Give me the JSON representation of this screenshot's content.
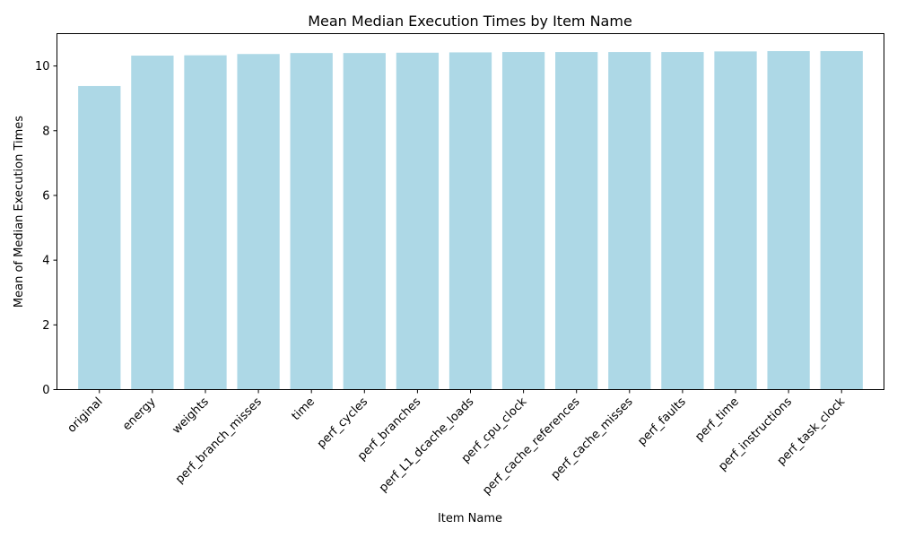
{
  "chart_data": {
    "type": "bar",
    "title": "Mean Median Execution Times by Item Name",
    "xlabel": "Item Name",
    "ylabel": "Mean of Median Execution Times",
    "categories": [
      "original",
      "energy",
      "weights",
      "perf_branch_misses",
      "time",
      "perf_cycles",
      "perf_branches",
      "perf_L1_dcache_loads",
      "perf_cpu_clock",
      "perf_cache_references",
      "perf_cache_misses",
      "perf_faults",
      "perf_time",
      "perf_instructions",
      "perf_task_clock"
    ],
    "values": [
      9.38,
      10.32,
      10.33,
      10.37,
      10.4,
      10.4,
      10.41,
      10.42,
      10.43,
      10.43,
      10.43,
      10.43,
      10.45,
      10.46,
      10.46
    ],
    "ylim": [
      0,
      11
    ],
    "yticks": [
      0,
      2,
      4,
      6,
      8,
      10
    ],
    "bar_color": "#add8e6",
    "grid": false,
    "legend": "none"
  }
}
